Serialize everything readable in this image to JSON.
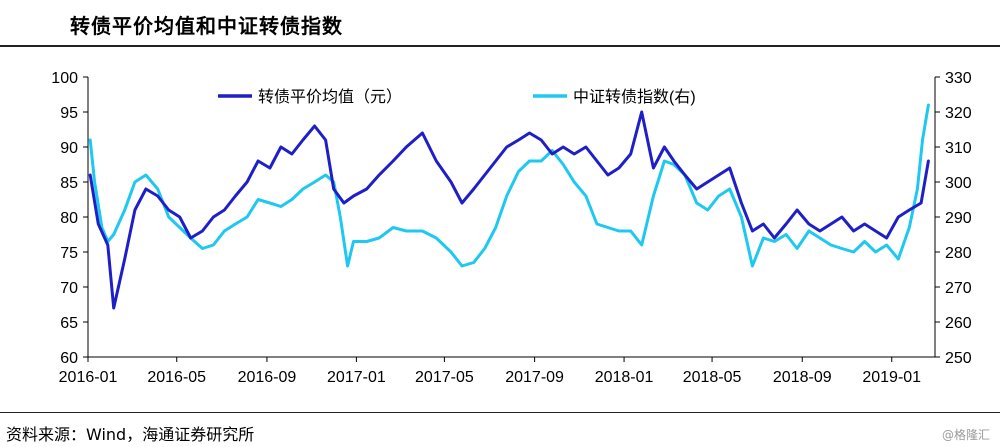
{
  "header": {
    "title": "转债平价均值和中证转债指数"
  },
  "footer": {
    "source": "资料来源：Wind，海通证券研究所",
    "watermark": "@格隆汇"
  },
  "chart_data": {
    "type": "line",
    "title": "",
    "x_ticks": [
      "2016-01",
      "2016-05",
      "2016-09",
      "2017-01",
      "2017-05",
      "2017-09",
      "2018-01",
      "2018-05",
      "2018-09",
      "2019-01"
    ],
    "y_left": {
      "lim": [
        60,
        100
      ],
      "ticks": [
        60,
        65,
        70,
        75,
        80,
        85,
        90,
        95,
        100
      ]
    },
    "y_right": {
      "lim": [
        250,
        330
      ],
      "ticks": [
        250,
        260,
        270,
        280,
        290,
        300,
        310,
        320,
        330
      ]
    },
    "legend_position": "top",
    "grid": false,
    "series": [
      {
        "name": "转债平价均值（元）",
        "axis": "left",
        "color": "#1f1fc8",
        "x": [
          "2016-01-04",
          "2016-01-15",
          "2016-01-28",
          "2016-02-05",
          "2016-02-20",
          "2016-03-05",
          "2016-03-20",
          "2016-04-05",
          "2016-04-20",
          "2016-05-05",
          "2016-05-20",
          "2016-06-05",
          "2016-06-20",
          "2016-07-05",
          "2016-07-20",
          "2016-08-05",
          "2016-08-20",
          "2016-09-05",
          "2016-09-20",
          "2016-10-05",
          "2016-10-20",
          "2016-11-05",
          "2016-11-20",
          "2016-12-01",
          "2016-12-15",
          "2016-12-28",
          "2017-01-15",
          "2017-02-01",
          "2017-02-20",
          "2017-03-10",
          "2017-04-01",
          "2017-04-20",
          "2017-05-10",
          "2017-05-25",
          "2017-06-10",
          "2017-06-25",
          "2017-07-10",
          "2017-07-25",
          "2017-08-10",
          "2017-08-25",
          "2017-09-10",
          "2017-09-25",
          "2017-10-10",
          "2017-10-25",
          "2017-11-10",
          "2017-11-25",
          "2017-12-10",
          "2017-12-25",
          "2018-01-10",
          "2018-01-25",
          "2018-02-10",
          "2018-02-25",
          "2018-03-10",
          "2018-03-25",
          "2018-04-10",
          "2018-04-25",
          "2018-05-10",
          "2018-05-25",
          "2018-06-10",
          "2018-06-25",
          "2018-07-10",
          "2018-07-25",
          "2018-08-10",
          "2018-08-25",
          "2018-09-10",
          "2018-09-25",
          "2018-10-10",
          "2018-10-25",
          "2018-11-10",
          "2018-11-25",
          "2018-12-10",
          "2018-12-25",
          "2019-01-10",
          "2019-01-25",
          "2019-02-10",
          "2019-02-20"
        ],
        "y": [
          86,
          79,
          76,
          67,
          74,
          81,
          84,
          83,
          81,
          80,
          77,
          78,
          80,
          81,
          83,
          85,
          88,
          87,
          90,
          89,
          91,
          93,
          91,
          84,
          82,
          83,
          84,
          86,
          88,
          90,
          92,
          88,
          85,
          82,
          84,
          86,
          88,
          90,
          91,
          92,
          91,
          89,
          90,
          89,
          90,
          88,
          86,
          87,
          89,
          95,
          87,
          90,
          88,
          86,
          84,
          85,
          86,
          87,
          82,
          78,
          79,
          77,
          79,
          81,
          79,
          78,
          79,
          80,
          78,
          79,
          78,
          77,
          80,
          81,
          82,
          88
        ]
      },
      {
        "name": "中证转债指数(右)",
        "axis": "right",
        "color": "#1ec8f0",
        "x": [
          "2016-01-04",
          "2016-01-10",
          "2016-01-20",
          "2016-01-28",
          "2016-02-05",
          "2016-02-20",
          "2016-03-05",
          "2016-03-20",
          "2016-04-05",
          "2016-04-20",
          "2016-05-05",
          "2016-05-20",
          "2016-06-05",
          "2016-06-20",
          "2016-07-05",
          "2016-07-20",
          "2016-08-05",
          "2016-08-20",
          "2016-09-05",
          "2016-09-20",
          "2016-10-05",
          "2016-10-20",
          "2016-11-05",
          "2016-11-20",
          "2016-12-01",
          "2016-12-10",
          "2016-12-20",
          "2016-12-28",
          "2017-01-15",
          "2017-02-01",
          "2017-02-20",
          "2017-03-10",
          "2017-04-01",
          "2017-04-20",
          "2017-05-10",
          "2017-05-25",
          "2017-06-10",
          "2017-06-25",
          "2017-07-10",
          "2017-07-25",
          "2017-08-10",
          "2017-08-25",
          "2017-09-10",
          "2017-09-25",
          "2017-10-10",
          "2017-10-25",
          "2017-11-10",
          "2017-11-25",
          "2017-12-10",
          "2017-12-25",
          "2018-01-10",
          "2018-01-25",
          "2018-02-10",
          "2018-02-25",
          "2018-03-10",
          "2018-03-25",
          "2018-04-10",
          "2018-04-25",
          "2018-05-10",
          "2018-05-25",
          "2018-06-10",
          "2018-06-25",
          "2018-07-10",
          "2018-07-25",
          "2018-08-10",
          "2018-08-25",
          "2018-09-10",
          "2018-09-25",
          "2018-10-10",
          "2018-10-25",
          "2018-11-10",
          "2018-11-25",
          "2018-12-10",
          "2018-12-25",
          "2019-01-10",
          "2019-01-25",
          "2019-02-05",
          "2019-02-12",
          "2019-02-20"
        ],
        "y": [
          312,
          300,
          287,
          283,
          285,
          292,
          300,
          302,
          298,
          290,
          287,
          284,
          281,
          282,
          286,
          288,
          290,
          295,
          294,
          293,
          295,
          298,
          300,
          302,
          300,
          290,
          276,
          283,
          283,
          284,
          287,
          286,
          286,
          284,
          280,
          276,
          277,
          281,
          287,
          296,
          303,
          306,
          306,
          309,
          305,
          300,
          296,
          288,
          287,
          286,
          286,
          282,
          296,
          306,
          305,
          302,
          294,
          292,
          296,
          298,
          290,
          276,
          284,
          283,
          285,
          281,
          286,
          284,
          282,
          281,
          280,
          283,
          280,
          282,
          278,
          287,
          298,
          312,
          322
        ]
      }
    ]
  }
}
